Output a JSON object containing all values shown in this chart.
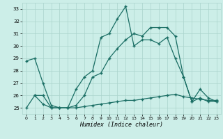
{
  "title": "",
  "xlabel": "Humidex (Indice chaleur)",
  "bg_color": "#cceee8",
  "grid_color": "#aad4cc",
  "line_color": "#1a6e64",
  "xlim": [
    -0.5,
    23.5
  ],
  "ylim": [
    24.5,
    33.5
  ],
  "yticks": [
    25,
    26,
    27,
    28,
    29,
    30,
    31,
    32,
    33
  ],
  "xticks": [
    0,
    1,
    2,
    3,
    4,
    5,
    6,
    7,
    8,
    9,
    10,
    11,
    12,
    13,
    14,
    15,
    16,
    17,
    18,
    19,
    20,
    21,
    22,
    23
  ],
  "series1_x": [
    0,
    1,
    2,
    3,
    4,
    5,
    6,
    7,
    8,
    9,
    10,
    11,
    12,
    13,
    14,
    15,
    16,
    17,
    18,
    19,
    20,
    21,
    22,
    23
  ],
  "series1_y": [
    28.8,
    29.0,
    27.0,
    25.2,
    25.0,
    25.0,
    26.5,
    27.5,
    28.0,
    30.7,
    31.0,
    32.2,
    33.2,
    30.0,
    30.5,
    30.5,
    30.2,
    30.7,
    29.0,
    27.5,
    25.5,
    25.8,
    25.5,
    25.5
  ],
  "series2_x": [
    0,
    1,
    2,
    3,
    4,
    5,
    6,
    7,
    8,
    9,
    10,
    11,
    12,
    13,
    14,
    15,
    16,
    17,
    18,
    19,
    20,
    21,
    22,
    23
  ],
  "series2_y": [
    25.0,
    26.0,
    25.3,
    25.0,
    25.0,
    25.0,
    25.0,
    25.1,
    25.2,
    25.3,
    25.4,
    25.5,
    25.6,
    25.6,
    25.7,
    25.8,
    25.9,
    26.0,
    26.1,
    25.9,
    25.8,
    25.7,
    25.6,
    25.6
  ],
  "series3_x": [
    1,
    2,
    3,
    4,
    5,
    6,
    7,
    8,
    9,
    10,
    11,
    12,
    13,
    14,
    15,
    16,
    17,
    18,
    19,
    20,
    21,
    22,
    23
  ],
  "series3_y": [
    26.0,
    26.0,
    25.0,
    25.0,
    25.0,
    25.2,
    26.0,
    27.5,
    27.8,
    29.0,
    29.8,
    30.5,
    31.0,
    30.8,
    31.5,
    31.5,
    31.5,
    30.8,
    27.5,
    25.5,
    26.5,
    25.8,
    25.5
  ]
}
